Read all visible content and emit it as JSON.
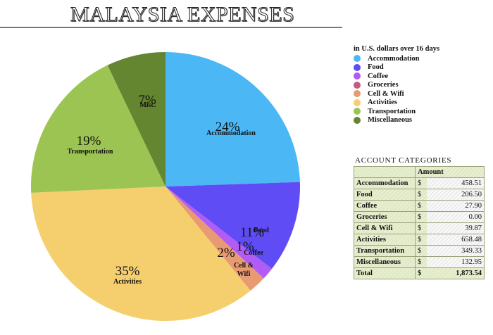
{
  "title": "MALAYSIA EXPENSES",
  "legend": {
    "caption": "in U.S. dollars over 16 days",
    "items": [
      {
        "label": "Accommodation",
        "color": "#4bb8f5"
      },
      {
        "label": "Food",
        "color": "#604cf5"
      },
      {
        "label": "Coffee",
        "color": "#b05cf5"
      },
      {
        "label": "Groceries",
        "color": "#c45a82"
      },
      {
        "label": "Cell & Wifi",
        "color": "#e89a72"
      },
      {
        "label": "Activities",
        "color": "#f5cf6e"
      },
      {
        "label": "Transportation",
        "color": "#9cc452"
      },
      {
        "label": "Miscellaneous",
        "color": "#648630"
      }
    ]
  },
  "table": {
    "caption": "ACCOUNT CATEGORIES",
    "header": "Amount",
    "currency": "$",
    "rows": [
      {
        "label": "Accommodation",
        "value": "458.51"
      },
      {
        "label": "Food",
        "value": "206.50"
      },
      {
        "label": "Coffee",
        "value": "27.90"
      },
      {
        "label": "Groceries",
        "value": "0.00"
      },
      {
        "label": "Cell & Wifi",
        "value": "39.87"
      },
      {
        "label": "Activities",
        "value": "658.48"
      },
      {
        "label": "Transportation",
        "value": "349.33"
      },
      {
        "label": "Miscellaneous",
        "value": "132.95"
      }
    ],
    "total": {
      "label": "Total",
      "value": "1,873.54"
    }
  },
  "chart_data": {
    "type": "pie",
    "title": "MALAYSIA EXPENSES",
    "subtitle": "in U.S. dollars over 16 days",
    "categories": [
      "Accommodation",
      "Food",
      "Coffee",
      "Groceries",
      "Cell & Wifi",
      "Activities",
      "Transportation",
      "Miscellaneous"
    ],
    "values": [
      458.51,
      206.5,
      27.9,
      0.0,
      39.87,
      658.48,
      349.33,
      132.95
    ],
    "percent_labels": [
      "24%",
      "11%",
      "1%",
      "0%",
      "2%",
      "35%",
      "19%",
      "7%"
    ],
    "slice_labels": [
      "Accommodation",
      "Food",
      "Coffee",
      "",
      "Cell &\nWifi",
      "Activities",
      "Transportation",
      "Misc."
    ],
    "total": 1873.54,
    "start_angle_deg": 0,
    "direction": "clockwise from 12 o'clock",
    "legend_position": "right"
  }
}
